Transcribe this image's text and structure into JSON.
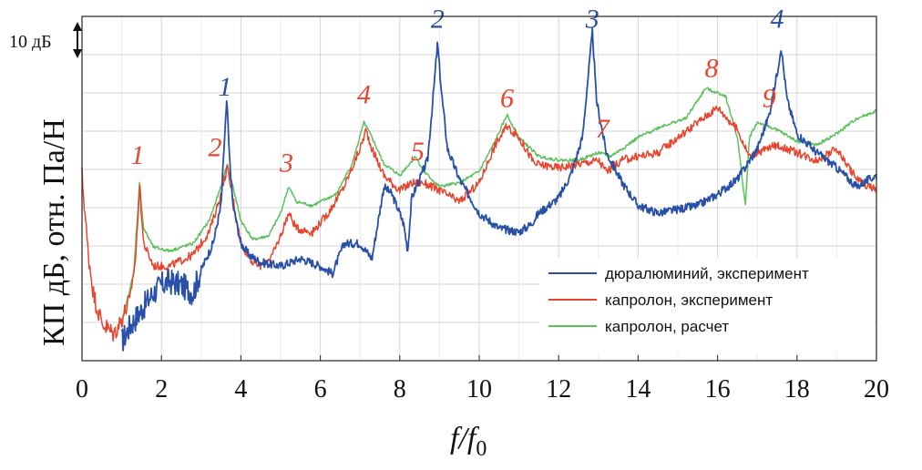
{
  "chart_data": {
    "type": "line",
    "xlabel": "f/f0",
    "xlabel_main": "f/f",
    "xlabel_sub": "0",
    "ylabel": "КП дБ, отн. Па/Н",
    "scale_label": "10 дБ",
    "xlim": [
      0,
      20
    ],
    "ylim": [
      -1,
      90
    ],
    "x_ticks": [
      "0",
      "2",
      "4",
      "6",
      "8",
      "10",
      "12",
      "14",
      "16",
      "18",
      "20"
    ],
    "x_tick_values": [
      0,
      2,
      4,
      6,
      8,
      10,
      12,
      14,
      16,
      18,
      20
    ],
    "grid": true,
    "legend_position": "bottom-right",
    "series": [
      {
        "name": "дюралюминий, эксперимент",
        "color": "#2850a8",
        "points": [
          [
            1.0,
            4
          ],
          [
            1.2,
            8
          ],
          [
            1.4,
            11
          ],
          [
            1.6,
            14
          ],
          [
            1.8,
            17
          ],
          [
            2.0,
            19
          ],
          [
            2.2,
            20
          ],
          [
            2.5,
            19
          ],
          [
            2.8,
            17
          ],
          [
            3.0,
            23
          ],
          [
            3.3,
            30
          ],
          [
            3.5,
            40
          ],
          [
            3.6,
            60
          ],
          [
            3.65,
            68
          ],
          [
            3.7,
            55
          ],
          [
            3.8,
            40
          ],
          [
            4.0,
            30
          ],
          [
            4.2,
            27
          ],
          [
            4.5,
            25
          ],
          [
            5.0,
            24
          ],
          [
            5.5,
            26
          ],
          [
            6.0,
            24
          ],
          [
            6.3,
            22
          ],
          [
            6.6,
            30
          ],
          [
            7.0,
            30
          ],
          [
            7.3,
            26
          ],
          [
            7.6,
            45
          ],
          [
            7.8,
            43
          ],
          [
            8.0,
            38
          ],
          [
            8.1,
            35
          ],
          [
            8.2,
            28
          ],
          [
            8.3,
            42
          ],
          [
            8.5,
            47
          ],
          [
            8.7,
            52
          ],
          [
            8.85,
            70
          ],
          [
            8.95,
            83
          ],
          [
            9.05,
            70
          ],
          [
            9.2,
            55
          ],
          [
            9.5,
            47
          ],
          [
            10.0,
            38
          ],
          [
            10.5,
            34
          ],
          [
            11.0,
            33
          ],
          [
            11.3,
            35
          ],
          [
            11.5,
            38
          ],
          [
            12.0,
            42
          ],
          [
            12.3,
            48
          ],
          [
            12.6,
            58
          ],
          [
            12.75,
            75
          ],
          [
            12.85,
            86
          ],
          [
            12.95,
            68
          ],
          [
            13.2,
            54
          ],
          [
            13.6,
            46
          ],
          [
            14.0,
            40
          ],
          [
            14.5,
            38
          ],
          [
            15.0,
            39
          ],
          [
            15.5,
            40
          ],
          [
            16.0,
            43
          ],
          [
            16.5,
            47
          ],
          [
            17.0,
            55
          ],
          [
            17.3,
            64
          ],
          [
            17.5,
            75
          ],
          [
            17.6,
            82
          ],
          [
            17.75,
            68
          ],
          [
            18.0,
            59
          ],
          [
            18.5,
            54
          ],
          [
            19.0,
            50
          ],
          [
            19.5,
            45
          ],
          [
            20.0,
            48
          ]
        ]
      },
      {
        "name": "капролон, эксперимент",
        "color": "#e8452e",
        "points": [
          [
            0,
            48
          ],
          [
            0.15,
            28
          ],
          [
            0.3,
            16
          ],
          [
            0.5,
            9
          ],
          [
            0.8,
            6
          ],
          [
            1.0,
            10
          ],
          [
            1.2,
            15
          ],
          [
            1.35,
            26
          ],
          [
            1.45,
            45
          ],
          [
            1.55,
            30
          ],
          [
            1.8,
            24
          ],
          [
            2.2,
            24
          ],
          [
            2.8,
            27
          ],
          [
            3.2,
            33
          ],
          [
            3.5,
            43
          ],
          [
            3.65,
            50
          ],
          [
            3.8,
            42
          ],
          [
            4.0,
            30
          ],
          [
            4.3,
            25
          ],
          [
            4.5,
            24
          ],
          [
            4.8,
            27
          ],
          [
            5.0,
            32
          ],
          [
            5.2,
            38
          ],
          [
            5.4,
            34
          ],
          [
            5.8,
            33
          ],
          [
            6.2,
            38
          ],
          [
            6.6,
            45
          ],
          [
            7.0,
            55
          ],
          [
            7.15,
            60
          ],
          [
            7.3,
            55
          ],
          [
            7.6,
            48
          ],
          [
            8.0,
            44
          ],
          [
            8.3,
            46
          ],
          [
            8.6,
            46
          ],
          [
            9.0,
            44
          ],
          [
            9.5,
            41
          ],
          [
            10.0,
            46
          ],
          [
            10.4,
            56
          ],
          [
            10.7,
            61
          ],
          [
            11.0,
            58
          ],
          [
            11.4,
            51
          ],
          [
            12.0,
            50
          ],
          [
            12.5,
            51
          ],
          [
            13.0,
            52
          ],
          [
            13.2,
            49
          ],
          [
            13.6,
            52
          ],
          [
            14.0,
            53
          ],
          [
            14.5,
            54
          ],
          [
            15.0,
            58
          ],
          [
            15.5,
            62
          ],
          [
            16.0,
            66
          ],
          [
            16.5,
            60
          ],
          [
            16.8,
            53
          ],
          [
            17.0,
            54
          ],
          [
            17.5,
            56
          ],
          [
            18.0,
            54
          ],
          [
            18.5,
            52
          ],
          [
            19.0,
            55
          ],
          [
            19.5,
            47
          ],
          [
            20.0,
            44
          ]
        ]
      },
      {
        "name": "капролон, расчет",
        "color": "#5cc15c",
        "points": [
          [
            1.0,
            9
          ],
          [
            1.3,
            22
          ],
          [
            1.45,
            46
          ],
          [
            1.55,
            34
          ],
          [
            1.8,
            29
          ],
          [
            2.2,
            28
          ],
          [
            2.8,
            30
          ],
          [
            3.2,
            36
          ],
          [
            3.5,
            45
          ],
          [
            3.65,
            51
          ],
          [
            3.8,
            45
          ],
          [
            4.0,
            36
          ],
          [
            4.3,
            31
          ],
          [
            4.7,
            32
          ],
          [
            5.0,
            38
          ],
          [
            5.2,
            45
          ],
          [
            5.4,
            41
          ],
          [
            5.8,
            40
          ],
          [
            6.4,
            43
          ],
          [
            6.8,
            51
          ],
          [
            7.1,
            62
          ],
          [
            7.3,
            58
          ],
          [
            7.6,
            51
          ],
          [
            8.0,
            48
          ],
          [
            8.4,
            53
          ],
          [
            8.6,
            49
          ],
          [
            9.0,
            45
          ],
          [
            9.5,
            46
          ],
          [
            10.0,
            49
          ],
          [
            10.4,
            57
          ],
          [
            10.7,
            64
          ],
          [
            11.0,
            58
          ],
          [
            11.5,
            53
          ],
          [
            12.0,
            52
          ],
          [
            12.5,
            52
          ],
          [
            13.0,
            54
          ],
          [
            13.3,
            53
          ],
          [
            13.6,
            55
          ],
          [
            14.0,
            58
          ],
          [
            14.6,
            61
          ],
          [
            15.2,
            63
          ],
          [
            15.7,
            71
          ],
          [
            16.2,
            69
          ],
          [
            16.5,
            58
          ],
          [
            16.7,
            40
          ],
          [
            16.8,
            58
          ],
          [
            17.0,
            62
          ],
          [
            17.5,
            60
          ],
          [
            18.0,
            57
          ],
          [
            18.5,
            56
          ],
          [
            19.0,
            59
          ],
          [
            19.5,
            63
          ],
          [
            20.0,
            65
          ]
        ]
      }
    ],
    "peak_labels": [
      {
        "text": "1",
        "x": 1.4,
        "y": 51,
        "color": "#e8452e"
      },
      {
        "text": "2",
        "x": 3.35,
        "y": 53,
        "color": "#e8452e"
      },
      {
        "text": "3",
        "x": 5.15,
        "y": 49,
        "color": "#e8452e"
      },
      {
        "text": "4",
        "x": 7.1,
        "y": 67,
        "color": "#e8452e"
      },
      {
        "text": "5",
        "x": 8.45,
        "y": 52,
        "color": "#e8452e"
      },
      {
        "text": "6",
        "x": 10.7,
        "y": 66,
        "color": "#e8452e"
      },
      {
        "text": "7",
        "x": 13.1,
        "y": 58,
        "color": "#e8452e"
      },
      {
        "text": "8",
        "x": 15.85,
        "y": 74,
        "color": "#e8452e"
      },
      {
        "text": "9",
        "x": 17.3,
        "y": 66,
        "color": "#e8452e"
      },
      {
        "text": "1",
        "x": 3.6,
        "y": 69,
        "color": "#2850a8"
      },
      {
        "text": "2",
        "x": 8.95,
        "y": 87,
        "color": "#2850a8"
      },
      {
        "text": "3",
        "x": 12.85,
        "y": 87,
        "color": "#2850a8"
      },
      {
        "text": "4",
        "x": 17.5,
        "y": 87,
        "color": "#2850a8"
      }
    ]
  }
}
